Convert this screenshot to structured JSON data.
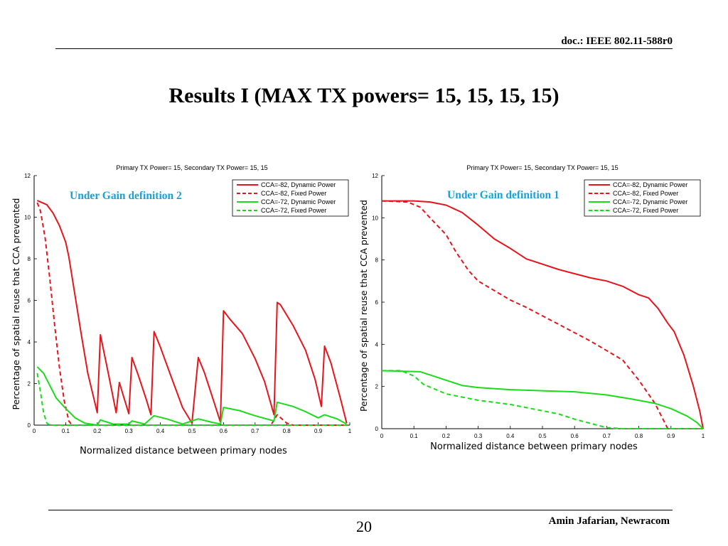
{
  "header": {
    "doc_id": "doc.: IEEE 802.11-588r0"
  },
  "title": "Results I (MAX TX powers= 15, 15, 15, 15)",
  "footer": {
    "page_number": "20",
    "author": "Amin Jafarian, Newracom"
  },
  "chart_data": [
    {
      "type": "line",
      "title": "Primary TX Power= 15, Secondary TX Power= 15, 15",
      "annotation": "Under Gain definition 2",
      "xlabel": "Normalized distance between primary nodes",
      "ylabel": "Percentage of spatial reuse that CCA prevented",
      "xlim": [
        0,
        1
      ],
      "ylim": [
        0,
        12
      ],
      "xticks": [
        "0",
        "0.1",
        "0.2",
        "0.3",
        "0.4",
        "0.5",
        "0.6",
        "0.7",
        "0.8",
        "0.9",
        "1"
      ],
      "yticks": [
        "0",
        "2",
        "4",
        "6",
        "8",
        "10",
        "12"
      ],
      "legend_position": "top-right",
      "series": [
        {
          "name": "CCA=-82, Dynamic Power",
          "color": "#e8141b",
          "dash": "solid",
          "points": [
            [
              0.01,
              10.8
            ],
            [
              0.04,
              10.6
            ],
            [
              0.06,
              10.2
            ],
            [
              0.08,
              9.6
            ],
            [
              0.1,
              8.8
            ],
            [
              0.11,
              8.1
            ],
            [
              0.13,
              6.2
            ],
            [
              0.15,
              4.3
            ],
            [
              0.17,
              2.5
            ],
            [
              0.2,
              0.6
            ],
            [
              0.21,
              4.35
            ],
            [
              0.235,
              2.5
            ],
            [
              0.26,
              0.6
            ],
            [
              0.27,
              2.05
            ],
            [
              0.285,
              1.3
            ],
            [
              0.3,
              0.55
            ],
            [
              0.31,
              3.25
            ],
            [
              0.33,
              2.4
            ],
            [
              0.355,
              1.25
            ],
            [
              0.37,
              0.5
            ],
            [
              0.38,
              4.5
            ],
            [
              0.4,
              3.75
            ],
            [
              0.43,
              2.5
            ],
            [
              0.47,
              0.85
            ],
            [
              0.5,
              0.1
            ],
            [
              0.52,
              3.25
            ],
            [
              0.54,
              2.5
            ],
            [
              0.57,
              1.1
            ],
            [
              0.59,
              0.15
            ],
            [
              0.6,
              5.5
            ],
            [
              0.62,
              5.1
            ],
            [
              0.66,
              4.4
            ],
            [
              0.7,
              3.2
            ],
            [
              0.73,
              2.1
            ],
            [
              0.76,
              0.5
            ],
            [
              0.77,
              5.9
            ],
            [
              0.78,
              5.8
            ],
            [
              0.82,
              4.8
            ],
            [
              0.86,
              3.6
            ],
            [
              0.89,
              2.2
            ],
            [
              0.91,
              0.9
            ],
            [
              0.92,
              3.8
            ],
            [
              0.94,
              3.0
            ],
            [
              0.97,
              1.3
            ],
            [
              0.99,
              0.1
            ]
          ]
        },
        {
          "name": "CCA=-82, Fixed Power",
          "color": "#e8141b",
          "dash": "dashed",
          "points": [
            [
              0.01,
              10.7
            ],
            [
              0.02,
              10.3
            ],
            [
              0.035,
              9.0
            ],
            [
              0.05,
              7.0
            ],
            [
              0.065,
              4.8
            ],
            [
              0.08,
              2.8
            ],
            [
              0.095,
              1.2
            ],
            [
              0.11,
              0.2
            ],
            [
              0.12,
              0
            ],
            [
              0.75,
              0
            ],
            [
              0.77,
              0.5
            ],
            [
              0.8,
              0.1
            ],
            [
              0.82,
              0
            ],
            [
              0.99,
              0
            ]
          ]
        },
        {
          "name": "CCA=-72, Dynamic Power",
          "color": "#1adc1a",
          "dash": "solid",
          "points": [
            [
              0.01,
              2.8
            ],
            [
              0.03,
              2.5
            ],
            [
              0.05,
              1.9
            ],
            [
              0.07,
              1.3
            ],
            [
              0.1,
              0.8
            ],
            [
              0.13,
              0.35
            ],
            [
              0.16,
              0.1
            ],
            [
              0.2,
              0
            ],
            [
              0.21,
              0.25
            ],
            [
              0.25,
              0.05
            ],
            [
              0.3,
              0.05
            ],
            [
              0.31,
              0.2
            ],
            [
              0.35,
              0.05
            ],
            [
              0.38,
              0.45
            ],
            [
              0.42,
              0.3
            ],
            [
              0.47,
              0.05
            ],
            [
              0.52,
              0.3
            ],
            [
              0.56,
              0.15
            ],
            [
              0.59,
              0.05
            ],
            [
              0.6,
              0.85
            ],
            [
              0.65,
              0.7
            ],
            [
              0.7,
              0.45
            ],
            [
              0.76,
              0.2
            ],
            [
              0.77,
              1.1
            ],
            [
              0.82,
              0.9
            ],
            [
              0.86,
              0.65
            ],
            [
              0.9,
              0.35
            ],
            [
              0.92,
              0.5
            ],
            [
              0.96,
              0.3
            ],
            [
              0.99,
              0.05
            ]
          ]
        },
        {
          "name": "CCA=-72, Fixed Power",
          "color": "#1adc1a",
          "dash": "dashed",
          "points": [
            [
              0.01,
              2.5
            ],
            [
              0.02,
              1.6
            ],
            [
              0.03,
              0.6
            ],
            [
              0.04,
              0.1
            ],
            [
              0.05,
              0
            ],
            [
              0.99,
              0
            ]
          ]
        }
      ]
    },
    {
      "type": "line",
      "title": "Primary TX Power= 15, Secondary TX Power= 15, 15",
      "annotation": "Under Gain definition 1",
      "xlabel": "Normalized distance between primary nodes",
      "ylabel": "Percentage of spatial reuse that CCA prevented",
      "xlim": [
        0,
        1
      ],
      "ylim": [
        0,
        12
      ],
      "xticks": [
        "0",
        "0.1",
        "0.2",
        "0.3",
        "0.4",
        "0.5",
        "0.6",
        "0.7",
        "0.8",
        "0.9",
        "1"
      ],
      "yticks": [
        "0",
        "2",
        "4",
        "6",
        "8",
        "10",
        "12"
      ],
      "legend_position": "top-right",
      "series": [
        {
          "name": "CCA=-82, Dynamic Power",
          "color": "#e8141b",
          "dash": "solid",
          "points": [
            [
              0,
              10.8
            ],
            [
              0.1,
              10.8
            ],
            [
              0.15,
              10.75
            ],
            [
              0.2,
              10.6
            ],
            [
              0.25,
              10.25
            ],
            [
              0.3,
              9.65
            ],
            [
              0.35,
              9.0
            ],
            [
              0.4,
              8.55
            ],
            [
              0.45,
              8.05
            ],
            [
              0.5,
              7.8
            ],
            [
              0.55,
              7.55
            ],
            [
              0.6,
              7.35
            ],
            [
              0.65,
              7.15
            ],
            [
              0.7,
              7.0
            ],
            [
              0.75,
              6.75
            ],
            [
              0.8,
              6.35
            ],
            [
              0.83,
              6.2
            ],
            [
              0.86,
              5.7
            ],
            [
              0.89,
              5.0
            ],
            [
              0.91,
              4.6
            ],
            [
              0.94,
              3.5
            ],
            [
              0.97,
              2.0
            ],
            [
              0.99,
              0.8
            ],
            [
              1.0,
              0
            ]
          ]
        },
        {
          "name": "CCA=-82, Fixed Power",
          "color": "#e8141b",
          "dash": "dashed",
          "points": [
            [
              0,
              10.8
            ],
            [
              0.08,
              10.75
            ],
            [
              0.12,
              10.5
            ],
            [
              0.15,
              10.0
            ],
            [
              0.2,
              9.2
            ],
            [
              0.23,
              8.4
            ],
            [
              0.27,
              7.5
            ],
            [
              0.3,
              7.0
            ],
            [
              0.35,
              6.55
            ],
            [
              0.4,
              6.1
            ],
            [
              0.45,
              5.75
            ],
            [
              0.5,
              5.35
            ],
            [
              0.55,
              4.95
            ],
            [
              0.6,
              4.55
            ],
            [
              0.65,
              4.15
            ],
            [
              0.7,
              3.7
            ],
            [
              0.75,
              3.25
            ],
            [
              0.8,
              2.3
            ],
            [
              0.85,
              1.2
            ],
            [
              0.88,
              0.3
            ],
            [
              0.89,
              0
            ],
            [
              1.0,
              0
            ]
          ]
        },
        {
          "name": "CCA=-72, Dynamic Power",
          "color": "#1adc1a",
          "dash": "solid",
          "points": [
            [
              0,
              2.75
            ],
            [
              0.12,
              2.7
            ],
            [
              0.16,
              2.5
            ],
            [
              0.2,
              2.3
            ],
            [
              0.25,
              2.05
            ],
            [
              0.3,
              1.95
            ],
            [
              0.4,
              1.85
            ],
            [
              0.5,
              1.8
            ],
            [
              0.6,
              1.75
            ],
            [
              0.7,
              1.6
            ],
            [
              0.78,
              1.4
            ],
            [
              0.85,
              1.2
            ],
            [
              0.9,
              0.95
            ],
            [
              0.95,
              0.6
            ],
            [
              0.98,
              0.3
            ],
            [
              1.0,
              0
            ]
          ]
        },
        {
          "name": "CCA=-72, Fixed Power",
          "color": "#1adc1a",
          "dash": "dashed",
          "points": [
            [
              0,
              2.75
            ],
            [
              0.06,
              2.75
            ],
            [
              0.1,
              2.5
            ],
            [
              0.13,
              2.1
            ],
            [
              0.2,
              1.65
            ],
            [
              0.3,
              1.35
            ],
            [
              0.4,
              1.15
            ],
            [
              0.5,
              0.85
            ],
            [
              0.55,
              0.7
            ],
            [
              0.6,
              0.45
            ],
            [
              0.65,
              0.25
            ],
            [
              0.7,
              0.05
            ],
            [
              0.75,
              0
            ],
            [
              1.0,
              0
            ]
          ]
        }
      ]
    }
  ]
}
